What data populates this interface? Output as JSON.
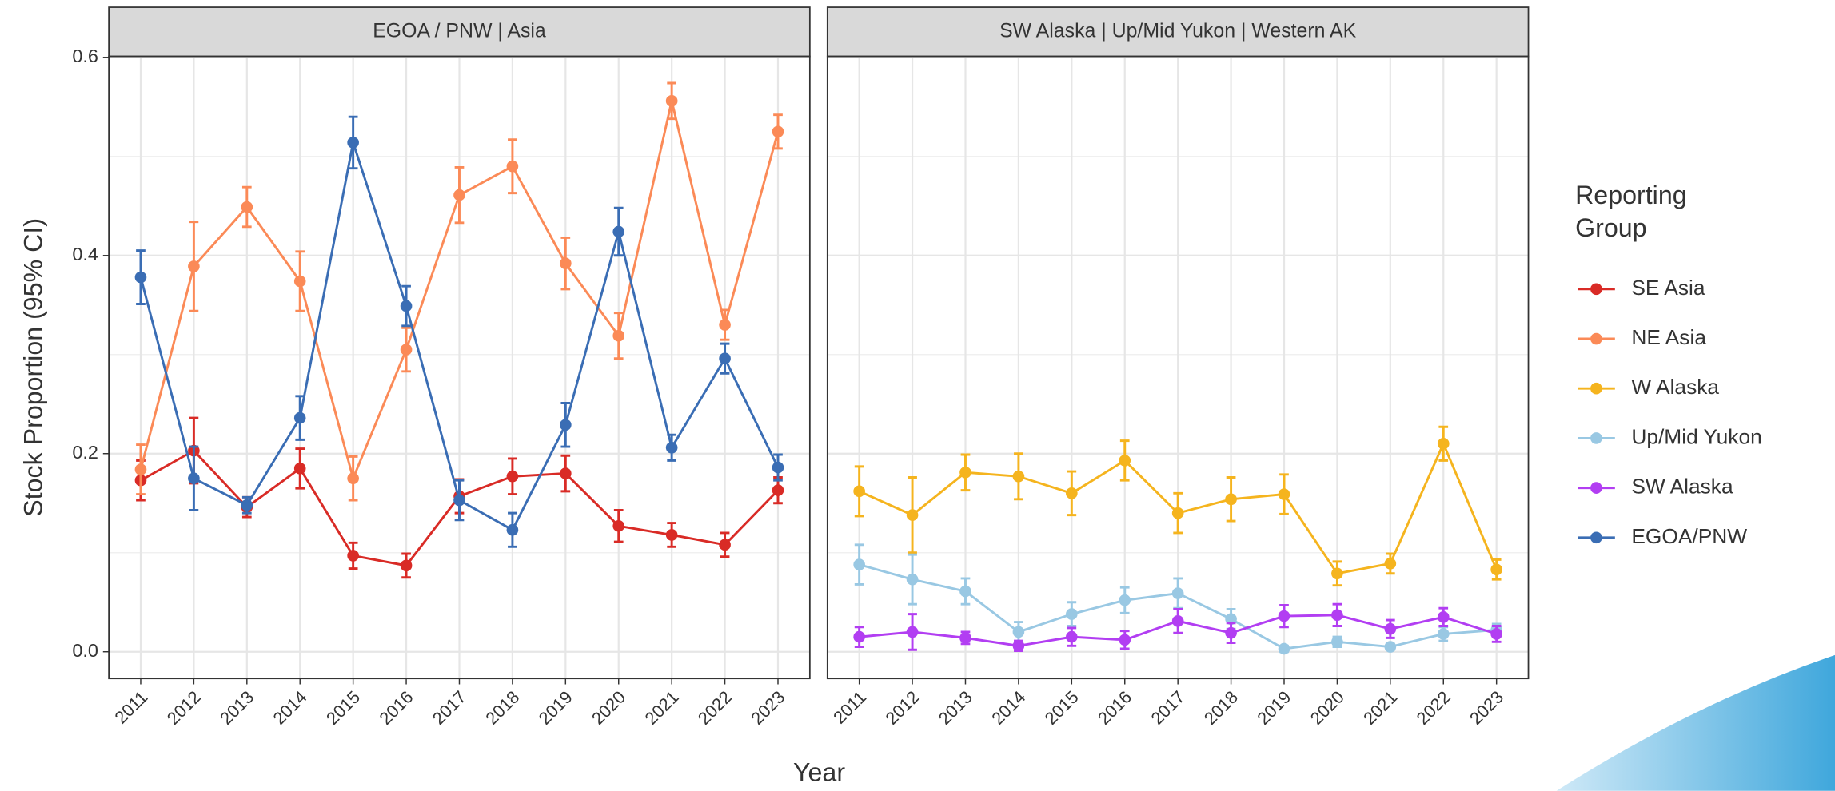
{
  "chart_data": {
    "type": "line",
    "ylabel": "Stock Proportion (95% CI)",
    "xlabel": "Year",
    "ylim": [
      -0.027,
      0.601
    ],
    "yticks": [
      {
        "value": 0,
        "label": "0.0"
      },
      0.2,
      0.4,
      0.6
    ],
    "grid": true,
    "categories": [
      "2011",
      "2012",
      "2013",
      "2014",
      "2015",
      "2016",
      "2017",
      "2018",
      "2019",
      "2020",
      "2021",
      "2022",
      "2023"
    ],
    "legend_title": "Reporting Group",
    "legend": [
      "SE Asia",
      "NE Asia",
      "W Alaska",
      "Up/Mid Yukon",
      "SW Alaska",
      "EGOA/PNW"
    ],
    "legend_position": "right",
    "panels": [
      {
        "title": "EGOA / PNW | Asia",
        "series": [
          {
            "name": "SE Asia",
            "color": "#d92b26",
            "values": [
              0.173,
              0.203,
              0.146,
              0.185,
              0.097,
              0.087,
              0.157,
              0.177,
              0.18,
              0.127,
              0.118,
              0.108,
              0.163
            ],
            "errors": [
              0.02,
              0.033,
              0.01,
              0.02,
              0.013,
              0.012,
              0.017,
              0.018,
              0.018,
              0.016,
              0.012,
              0.012,
              0.013
            ]
          },
          {
            "name": "NE Asia",
            "color": "#fb8a57",
            "values": [
              0.184,
              0.389,
              0.449,
              0.374,
              0.175,
              0.305,
              0.461,
              0.49,
              0.392,
              0.319,
              0.556,
              0.33,
              0.525
            ],
            "errors": [
              0.025,
              0.045,
              0.02,
              0.03,
              0.022,
              0.022,
              0.028,
              0.027,
              0.026,
              0.023,
              0.018,
              0.015,
              0.017
            ]
          },
          {
            "name": "EGOA/PNW",
            "color": "#3a6db4",
            "values": [
              0.378,
              0.175,
              0.148,
              0.236,
              0.514,
              0.349,
              0.153,
              0.123,
              0.229,
              0.424,
              0.206,
              0.296,
              0.186
            ],
            "errors": [
              0.027,
              0.032,
              0.008,
              0.022,
              0.026,
              0.02,
              0.02,
              0.017,
              0.022,
              0.024,
              0.013,
              0.015,
              0.013
            ]
          }
        ]
      },
      {
        "title": "SW Alaska | Up/Mid Yukon | Western AK",
        "series": [
          {
            "name": "W Alaska",
            "color": "#f5b41e",
            "values": [
              0.162,
              0.138,
              0.181,
              0.177,
              0.16,
              0.193,
              0.14,
              0.154,
              0.159,
              0.079,
              0.089,
              0.21,
              0.083
            ],
            "errors": [
              0.025,
              0.038,
              0.018,
              0.023,
              0.022,
              0.02,
              0.02,
              0.022,
              0.02,
              0.012,
              0.01,
              0.017,
              0.01
            ]
          },
          {
            "name": "Up/Mid Yukon",
            "color": "#99c8e3",
            "values": [
              0.088,
              0.073,
              0.061,
              0.02,
              0.038,
              0.052,
              0.059,
              0.033,
              0.003,
              0.01,
              0.005,
              0.018,
              0.022
            ],
            "errors": [
              0.02,
              0.025,
              0.013,
              0.01,
              0.012,
              0.013,
              0.015,
              0.01,
              0.003,
              0.005,
              0.003,
              0.007,
              0.006
            ]
          },
          {
            "name": "SW Alaska",
            "color": "#b23ef2",
            "values": [
              0.015,
              0.02,
              0.014,
              0.006,
              0.015,
              0.012,
              0.031,
              0.019,
              0.036,
              0.037,
              0.023,
              0.035,
              0.018
            ],
            "errors": [
              0.01,
              0.018,
              0.006,
              0.005,
              0.009,
              0.009,
              0.012,
              0.01,
              0.011,
              0.011,
              0.009,
              0.009,
              0.008
            ]
          }
        ]
      }
    ]
  }
}
